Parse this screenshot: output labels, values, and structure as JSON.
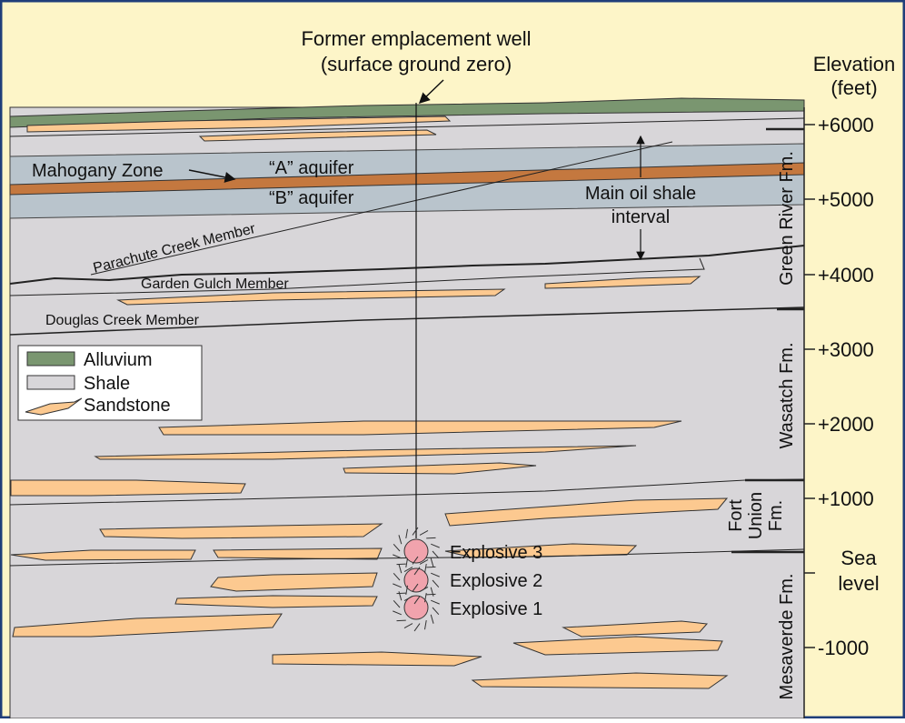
{
  "well": {
    "title": [
      "Former emplacement well",
      "(surface ground zero)"
    ]
  },
  "elevation": {
    "title": [
      "Elevation",
      "(feet)"
    ],
    "ticks": [
      "+6000",
      "+5000",
      "+4000",
      "+3000",
      "+2000",
      "+1000",
      [
        "Sea",
        "level"
      ],
      "-1000"
    ]
  },
  "formations": [
    [
      "Green River Fm."
    ],
    [
      "Wasatch Fm."
    ],
    [
      "Fort",
      "Union",
      "Fm."
    ],
    [
      "Mesaverde Fm."
    ]
  ],
  "zones": {
    "mahogany": "Mahogany Zone",
    "aquifer_a": "“A” aquifer",
    "aquifer_b": "“B” aquifer",
    "oil_shale": [
      "Main oil shale",
      "interval"
    ]
  },
  "members": {
    "parachute": "Parachute Creek Member",
    "garden": "Garden Gulch Member",
    "douglas": "Douglas Creek Member"
  },
  "legend": [
    "Alluvium",
    "Shale",
    "Sandstone"
  ],
  "explosives": [
    "Explosive 3",
    "Explosive 2",
    "Explosive 1"
  ]
}
